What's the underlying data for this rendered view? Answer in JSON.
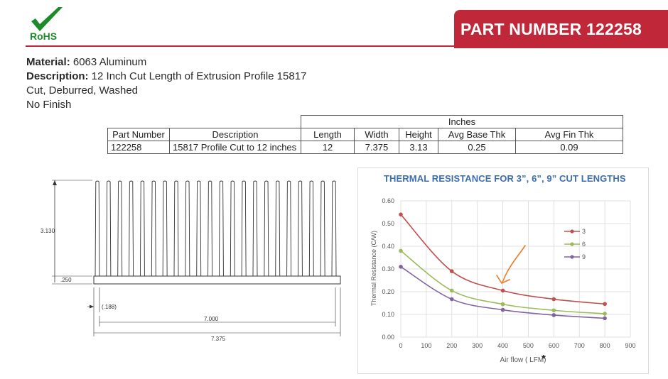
{
  "header": {
    "rohs_label": "RoHS",
    "part_number_title": "PART NUMBER 122258",
    "colors": {
      "brand_red": "#c0283a",
      "rohs_green": "#1f8a2b"
    }
  },
  "specs": {
    "material_label": "Material:",
    "material_value": " 6063 Aluminum",
    "description_label": "Description:",
    "description_value": " 12 Inch Cut Length of Extrusion Profile 15817",
    "line3": "Cut, Deburred, Washed",
    "line4": "No Finish"
  },
  "table": {
    "group_header": "Inches",
    "columns": [
      "Part Number",
      "Description",
      "Length",
      "Width",
      "Height",
      "Avg Base Thk",
      "Avg Fin Thk"
    ],
    "rows": [
      [
        "122258",
        "15817 Profile Cut to 12 inches",
        "12",
        "7.375",
        "3.13",
        "0.25",
        "0.09"
      ]
    ]
  },
  "drawing": {
    "dim_height": "3.130",
    "dim_base": ".250",
    "dim_fin_gap": "(.188)",
    "dim_width_inner": "7.000",
    "dim_width_outer": "7.375",
    "fin_count": 22
  },
  "chart_data": {
    "type": "line",
    "title": "THERMAL RESISTANCE FOR 3”, 6”, 9” CUT LENGTHS",
    "xlabel": "Air flow ( LFM)",
    "xlabel_mark": "*",
    "ylabel": "Thermal Resistance (C/W)",
    "xlim": [
      0,
      900
    ],
    "ylim": [
      0,
      0.6
    ],
    "x_ticks": [
      "0",
      "100",
      "200",
      "300",
      "400",
      "500",
      "600",
      "700",
      "800",
      "900"
    ],
    "y_ticks": [
      "0.00",
      "0.10",
      "0.20",
      "0.30",
      "0.40",
      "0.50",
      "0.60"
    ],
    "grid": true,
    "legend_position": "right",
    "x": [
      0,
      200,
      400,
      600,
      800
    ],
    "series": [
      {
        "name": "3",
        "color": "#c0504d",
        "values": [
          0.54,
          0.29,
          0.205,
          0.167,
          0.146
        ]
      },
      {
        "name": "6",
        "color": "#9bbb59",
        "values": [
          0.38,
          0.205,
          0.145,
          0.118,
          0.103
        ]
      },
      {
        "name": "9",
        "color": "#8064a2",
        "values": [
          0.31,
          0.167,
          0.12,
          0.097,
          0.083
        ]
      }
    ],
    "annotation": {
      "type": "hand-drawn arrow",
      "color": "#f07a24",
      "points_to_x": 400,
      "series": "3"
    }
  }
}
